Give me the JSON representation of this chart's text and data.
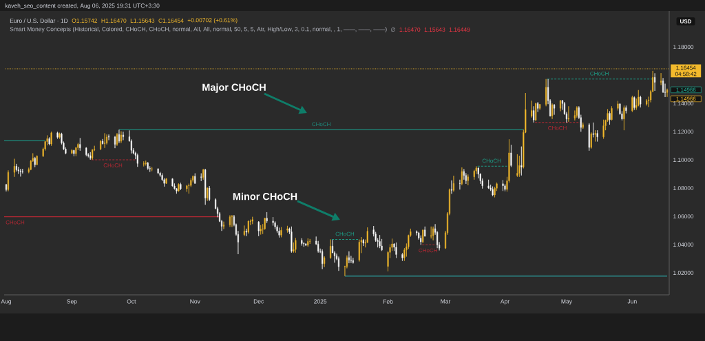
{
  "chart_data": {
    "type": "candlestick",
    "title": "Euro / U.S. Dollar · 1D",
    "annotations": [
      "kaveh_seo_content created, Aug 06, 2025 19:31 UTC+3:30",
      "O1.15742",
      "H1.16470",
      "L1.15643",
      "C1.16454",
      "+0.00702 (+0.61%)",
      "Smart Money Concepts (Historical, Colored, CHoCH, CHoCH, normal, All, All, normal, 50, 5, 5, Atr, High/Low, 3, 0.1, normal, , 1, ——, ——, ——)",
      "∅",
      "1.16470",
      "1.15643",
      "1.16449",
      "USD",
      "04:58:42",
      "Major CHoCH",
      "Minor CHoCH",
      "1.14966",
      "1.14966"
    ],
    "x": [
      "2024-08-01",
      "2024-08-02",
      "2024-08-05",
      "2024-08-06",
      "2024-08-07",
      "2024-08-08",
      "2024-08-09",
      "2024-08-12",
      "2024-08-13",
      "2024-08-14",
      "2024-08-15",
      "2024-08-16",
      "2024-08-19",
      "2024-08-20",
      "2024-08-21",
      "2024-08-22",
      "2024-08-23",
      "2024-08-26",
      "2024-08-27",
      "2024-08-28",
      "2024-08-29",
      "2024-08-30",
      "2024-09-02",
      "2024-09-03",
      "2024-09-04",
      "2024-09-05",
      "2024-09-06",
      "2024-09-09",
      "2024-09-10",
      "2024-09-11",
      "2024-09-12",
      "2024-09-13",
      "2024-09-16",
      "2024-09-17",
      "2024-09-18",
      "2024-09-19",
      "2024-09-20",
      "2024-09-23",
      "2024-09-24",
      "2024-09-25",
      "2024-09-26",
      "2024-09-27",
      "2024-09-30",
      "2024-10-01",
      "2024-10-02",
      "2024-10-03",
      "2024-10-04",
      "2024-10-07",
      "2024-10-08",
      "2024-10-09",
      "2024-10-10",
      "2024-10-11",
      "2024-10-14",
      "2024-10-15",
      "2024-10-16",
      "2024-10-17",
      "2024-10-18",
      "2024-10-21",
      "2024-10-22",
      "2024-10-23",
      "2024-10-24",
      "2024-10-25",
      "2024-10-28",
      "2024-10-29",
      "2024-10-30",
      "2024-10-31",
      "2024-11-01",
      "2024-11-04",
      "2024-11-05",
      "2024-11-06",
      "2024-11-07",
      "2024-11-08",
      "2024-11-11",
      "2024-11-12",
      "2024-11-13",
      "2024-11-14",
      "2024-11-15",
      "2024-11-18",
      "2024-11-19",
      "2024-11-20",
      "2024-11-21",
      "2024-11-22",
      "2024-11-25",
      "2024-11-26",
      "2024-11-27",
      "2024-11-28",
      "2024-11-29",
      "2024-12-02",
      "2024-12-03",
      "2024-12-04",
      "2024-12-05",
      "2024-12-06",
      "2024-12-09",
      "2024-12-10",
      "2024-12-11",
      "2024-12-12",
      "2024-12-13",
      "2024-12-16",
      "2024-12-17",
      "2024-12-18",
      "2024-12-19",
      "2024-12-20",
      "2024-12-23",
      "2024-12-24",
      "2024-12-25",
      "2024-12-26",
      "2024-12-27",
      "2024-12-30",
      "2024-12-31",
      "2025-01-01",
      "2025-01-02",
      "2025-01-03",
      "2025-01-06",
      "2025-01-07",
      "2025-01-08",
      "2025-01-09",
      "2025-01-10",
      "2025-01-13",
      "2025-01-14",
      "2025-01-15",
      "2025-01-16",
      "2025-01-17",
      "2025-01-20",
      "2025-01-21",
      "2025-01-22",
      "2025-01-23",
      "2025-01-24",
      "2025-01-27",
      "2025-01-28",
      "2025-01-29",
      "2025-01-30",
      "2025-01-31",
      "2025-02-03",
      "2025-02-04",
      "2025-02-05",
      "2025-02-06",
      "2025-02-07",
      "2025-02-10",
      "2025-02-11",
      "2025-02-12",
      "2025-02-13",
      "2025-02-14",
      "2025-02-17",
      "2025-02-18",
      "2025-02-19",
      "2025-02-20",
      "2025-02-21",
      "2025-02-24",
      "2025-02-25",
      "2025-02-26",
      "2025-02-27",
      "2025-02-28",
      "2025-03-03",
      "2025-03-04",
      "2025-03-05",
      "2025-03-06",
      "2025-03-07",
      "2025-03-10",
      "2025-03-11",
      "2025-03-12",
      "2025-03-13",
      "2025-03-14",
      "2025-03-17",
      "2025-03-18",
      "2025-03-19",
      "2025-03-20",
      "2025-03-21",
      "2025-03-24",
      "2025-03-25",
      "2025-03-26",
      "2025-03-27",
      "2025-03-28",
      "2025-03-31",
      "2025-04-01",
      "2025-04-02",
      "2025-04-03",
      "2025-04-04",
      "2025-04-07",
      "2025-04-08",
      "2025-04-09",
      "2025-04-10",
      "2025-04-11",
      "2025-04-14",
      "2025-04-15",
      "2025-04-16",
      "2025-04-17",
      "2025-04-18",
      "2025-04-21",
      "2025-04-22",
      "2025-04-23",
      "2025-04-24",
      "2025-04-25",
      "2025-04-28",
      "2025-04-29",
      "2025-04-30",
      "2025-05-01",
      "2025-05-02",
      "2025-05-05",
      "2025-05-06",
      "2025-05-07",
      "2025-05-08",
      "2025-05-09",
      "2025-05-12",
      "2025-05-13",
      "2025-05-14",
      "2025-05-15",
      "2025-05-16",
      "2025-05-19",
      "2025-05-20",
      "2025-05-21",
      "2025-05-22",
      "2025-05-23",
      "2025-05-26",
      "2025-05-27",
      "2025-05-28",
      "2025-05-29",
      "2025-05-30",
      "2025-06-02",
      "2025-06-03",
      "2025-06-04",
      "2025-06-05",
      "2025-06-06",
      "2025-06-09",
      "2025-06-10",
      "2025-06-11",
      "2025-06-12",
      "2025-06-13",
      "2025-06-16",
      "2025-06-17",
      "2025-06-18",
      "2025-06-19"
    ],
    "ohlc": [
      [
        1.0825,
        1.083,
        1.0777,
        1.079
      ],
      [
        1.079,
        1.0926,
        1.0778,
        1.0912
      ],
      [
        1.0912,
        1.1008,
        1.088,
        1.0955
      ],
      [
        1.0955,
        1.0972,
        1.0918,
        1.093
      ],
      [
        1.093,
        1.0951,
        1.0901,
        1.0922
      ],
      [
        1.0922,
        1.0937,
        1.0882,
        1.0918
      ],
      [
        1.0918,
        1.0937,
        1.0904,
        1.0916
      ],
      [
        1.0916,
        1.0945,
        1.0906,
        1.0932
      ],
      [
        1.0932,
        1.1,
        1.0927,
        1.0992
      ],
      [
        1.0992,
        1.1047,
        1.0986,
        1.1012
      ],
      [
        1.1012,
        1.1021,
        1.0949,
        1.0967
      ],
      [
        1.0967,
        1.1032,
        1.0962,
        1.1027
      ],
      [
        1.1027,
        1.1087,
        1.102,
        1.1078
      ],
      [
        1.1078,
        1.1135,
        1.1066,
        1.113
      ],
      [
        1.113,
        1.1174,
        1.1103,
        1.1151
      ],
      [
        1.1151,
        1.116,
        1.1104,
        1.1113
      ],
      [
        1.1113,
        1.1201,
        1.11,
        1.1192
      ],
      [
        1.1192,
        1.12,
        1.115,
        1.116
      ],
      [
        1.116,
        1.1193,
        1.115,
        1.1185
      ],
      [
        1.1185,
        1.1192,
        1.111,
        1.112
      ],
      [
        1.112,
        1.113,
        1.107,
        1.1077
      ],
      [
        1.1077,
        1.1089,
        1.104,
        1.1047
      ],
      [
        1.1047,
        1.1076,
        1.1042,
        1.1068
      ],
      [
        1.1068,
        1.1071,
        1.1026,
        1.1045
      ],
      [
        1.1045,
        1.109,
        1.1027,
        1.1087
      ],
      [
        1.1087,
        1.112,
        1.107,
        1.111
      ],
      [
        1.111,
        1.1155,
        1.1065,
        1.1085
      ],
      [
        1.1085,
        1.109,
        1.1026,
        1.1037
      ],
      [
        1.1037,
        1.1048,
        1.1018,
        1.103
      ],
      [
        1.103,
        1.1055,
        1.1001,
        1.1012
      ],
      [
        1.1012,
        1.1075,
        1.1002,
        1.1073
      ],
      [
        1.1073,
        1.11,
        1.1063,
        1.1076
      ],
      [
        1.1076,
        1.114,
        1.107,
        1.1132
      ],
      [
        1.1132,
        1.1148,
        1.111,
        1.1115
      ],
      [
        1.1115,
        1.1189,
        1.1085,
        1.112
      ],
      [
        1.112,
        1.118,
        1.111,
        1.1162
      ],
      [
        1.1165,
        1.118,
        1.114,
        1.1162
      ],
      [
        1.1162,
        1.117,
        1.1083,
        1.1111
      ],
      [
        1.1111,
        1.119,
        1.11,
        1.118
      ],
      [
        1.118,
        1.1214,
        1.112,
        1.1133
      ],
      [
        1.1133,
        1.1203,
        1.112,
        1.1177
      ],
      [
        1.1177,
        1.12,
        1.114,
        1.1164
      ],
      [
        1.1164,
        1.1209,
        1.113,
        1.1134
      ],
      [
        1.1134,
        1.1145,
        1.1046,
        1.1068
      ],
      [
        1.1068,
        1.1083,
        1.104,
        1.1048
      ],
      [
        1.1048,
        1.1058,
        1.1005,
        1.1033
      ],
      [
        1.1033,
        1.1045,
        1.0951,
        1.0975
      ],
      [
        1.097,
        1.099,
        1.0954,
        1.0973
      ],
      [
        1.0973,
        1.0995,
        1.096,
        1.0979
      ],
      [
        1.0979,
        1.0985,
        1.093,
        1.094
      ],
      [
        1.094,
        1.0955,
        1.0915,
        1.0936
      ],
      [
        1.0936,
        1.095,
        1.092,
        1.0937
      ],
      [
        1.0937,
        1.094,
        1.09,
        1.0907
      ],
      [
        1.0907,
        1.0915,
        1.088,
        1.0891
      ],
      [
        1.0891,
        1.0905,
        1.085,
        1.086
      ],
      [
        1.086,
        1.0871,
        1.0811,
        1.0834
      ],
      [
        1.0834,
        1.0871,
        1.083,
        1.0866
      ],
      [
        1.0866,
        1.087,
        1.0812,
        1.0815
      ],
      [
        1.0815,
        1.0833,
        1.079,
        1.0797
      ],
      [
        1.0797,
        1.08,
        1.0761,
        1.078
      ],
      [
        1.078,
        1.0834,
        1.0775,
        1.0827
      ],
      [
        1.0827,
        1.0838,
        1.0786,
        1.0796
      ],
      [
        1.0796,
        1.0822,
        1.0774,
        1.0817
      ],
      [
        1.0817,
        1.0832,
        1.0761,
        1.0819
      ],
      [
        1.0819,
        1.087,
        1.0808,
        1.0856
      ],
      [
        1.0856,
        1.089,
        1.0841,
        1.0884
      ],
      [
        1.0884,
        1.0905,
        1.0832,
        1.0833
      ],
      [
        1.088,
        1.0905,
        1.085,
        1.0876
      ],
      [
        1.0876,
        1.0937,
        1.086,
        1.093
      ],
      [
        1.093,
        1.0937,
        1.0682,
        1.073
      ],
      [
        1.073,
        1.0805,
        1.071,
        1.08
      ],
      [
        1.08,
        1.0815,
        1.0709,
        1.0719
      ],
      [
        1.0719,
        1.0727,
        1.0652,
        1.0655
      ],
      [
        1.0655,
        1.0668,
        1.0594,
        1.062
      ],
      [
        1.062,
        1.063,
        1.056,
        1.0565
      ],
      [
        1.0565,
        1.0575,
        1.0497,
        1.053
      ],
      [
        1.053,
        1.0563,
        1.051,
        1.054
      ],
      [
        1.054,
        1.0608,
        1.0525,
        1.0597
      ],
      [
        1.0597,
        1.061,
        1.0525,
        1.0598
      ],
      [
        1.0598,
        1.061,
        1.053,
        1.0542
      ],
      [
        1.0542,
        1.0549,
        1.0463,
        1.0472
      ],
      [
        1.0472,
        1.0497,
        1.0332,
        1.0418
      ],
      [
        1.047,
        1.0535,
        1.046,
        1.0496
      ],
      [
        1.0496,
        1.0513,
        1.046,
        1.0488
      ],
      [
        1.0488,
        1.057,
        1.0478,
        1.0566
      ],
      [
        1.0564,
        1.0578,
        1.0538,
        1.0566
      ],
      [
        1.0566,
        1.0597,
        1.0545,
        1.0577
      ],
      [
        1.056,
        1.0566,
        1.046,
        1.0497
      ],
      [
        1.0497,
        1.0538,
        1.0471,
        1.051
      ],
      [
        1.051,
        1.0545,
        1.0475,
        1.0512
      ],
      [
        1.0512,
        1.059,
        1.0505,
        1.0587
      ],
      [
        1.0587,
        1.063,
        1.0553,
        1.0567
      ],
      [
        1.0567,
        1.0595,
        1.0535,
        1.0555
      ],
      [
        1.0555,
        1.0565,
        1.0508,
        1.0526
      ],
      [
        1.0526,
        1.0538,
        1.0482,
        1.0496
      ],
      [
        1.0496,
        1.052,
        1.045,
        1.0467
      ],
      [
        1.0467,
        1.0524,
        1.0452,
        1.0502
      ],
      [
        1.0502,
        1.0533,
        1.0485,
        1.0512
      ],
      [
        1.0512,
        1.052,
        1.0475,
        1.0491
      ],
      [
        1.0491,
        1.0528,
        1.0343,
        1.0353
      ],
      [
        1.0353,
        1.0415,
        1.0343,
        1.0365
      ],
      [
        1.0365,
        1.0447,
        1.0343,
        1.043
      ],
      [
        1.043,
        1.0445,
        1.0393,
        1.0408
      ],
      [
        1.0408,
        1.0417,
        1.0385,
        1.0405
      ],
      [
        1.0405,
        1.041,
        1.039,
        1.0395
      ],
      [
        1.0395,
        1.0444,
        1.0385,
        1.0422
      ],
      [
        1.0422,
        1.044,
        1.0405,
        1.0425
      ],
      [
        1.0425,
        1.0457,
        1.0398,
        1.0404
      ],
      [
        1.0404,
        1.0426,
        1.0343,
        1.0354
      ],
      [
        1.0354,
        1.0372,
        1.034,
        1.0351
      ],
      [
        1.0351,
        1.0366,
        1.0226,
        1.0265
      ],
      [
        1.0265,
        1.0317,
        1.0241,
        1.0307
      ],
      [
        1.0307,
        1.0437,
        1.03,
        1.0389
      ],
      [
        1.0389,
        1.0433,
        1.034,
        1.0342
      ],
      [
        1.0342,
        1.0353,
        1.0272,
        1.032
      ],
      [
        1.032,
        1.0336,
        1.029,
        1.03
      ],
      [
        1.03,
        1.0315,
        1.0214,
        1.0244
      ],
      [
        1.0244,
        1.025,
        1.0177,
        1.0245
      ],
      [
        1.0245,
        1.0323,
        1.0232,
        1.0308
      ],
      [
        1.0308,
        1.0352,
        1.0268,
        1.029
      ],
      [
        1.029,
        1.032,
        1.027,
        1.0287
      ],
      [
        1.0287,
        1.0306,
        1.0266,
        1.0273
      ],
      [
        1.029,
        1.0436,
        1.028,
        1.0418
      ],
      [
        1.0418,
        1.0454,
        1.034,
        1.0431
      ],
      [
        1.0431,
        1.044,
        1.039,
        1.041
      ],
      [
        1.041,
        1.0436,
        1.038,
        1.0415
      ],
      [
        1.0415,
        1.0522,
        1.0412,
        1.0495
      ],
      [
        1.0505,
        1.0532,
        1.0458,
        1.0475
      ],
      [
        1.0475,
        1.049,
        1.042,
        1.043
      ],
      [
        1.043,
        1.0445,
        1.038,
        1.0422
      ],
      [
        1.0422,
        1.0468,
        1.0375,
        1.039
      ],
      [
        1.039,
        1.044,
        1.0355,
        1.0362
      ],
      [
        1.0245,
        1.0355,
        1.021,
        1.0345
      ],
      [
        1.0345,
        1.0402,
        1.0305,
        1.038
      ],
      [
        1.038,
        1.0442,
        1.0356,
        1.0405
      ],
      [
        1.0405,
        1.041,
        1.0355,
        1.0381
      ],
      [
        1.0381,
        1.0415,
        1.0305,
        1.033
      ],
      [
        1.033,
        1.034,
        1.0285,
        1.0306
      ],
      [
        1.0306,
        1.0375,
        1.0285,
        1.0362
      ],
      [
        1.0362,
        1.0408,
        1.0315,
        1.0384
      ],
      [
        1.0384,
        1.047,
        1.037,
        1.0465
      ],
      [
        1.0465,
        1.0513,
        1.0456,
        1.0492
      ],
      [
        1.0492,
        1.05,
        1.0465,
        1.0483
      ],
      [
        1.0483,
        1.049,
        1.0435,
        1.0446
      ],
      [
        1.0446,
        1.0465,
        1.0398,
        1.042
      ],
      [
        1.042,
        1.0505,
        1.041,
        1.0504
      ],
      [
        1.0504,
        1.0528,
        1.0458,
        1.0459
      ],
      [
        1.0459,
        1.0528,
        1.0443,
        1.0464
      ],
      [
        1.0464,
        1.0528,
        1.043,
        1.0513
      ],
      [
        1.0513,
        1.0545,
        1.047,
        1.0487
      ],
      [
        1.0487,
        1.0495,
        1.0375,
        1.0398
      ],
      [
        1.0398,
        1.0418,
        1.0359,
        1.0375
      ],
      [
        1.0375,
        1.0498,
        1.037,
        1.0484
      ],
      [
        1.0484,
        1.063,
        1.047,
        1.062
      ],
      [
        1.062,
        1.0797,
        1.0608,
        1.079
      ],
      [
        1.079,
        1.0855,
        1.076,
        1.0785
      ],
      [
        1.0785,
        1.0888,
        1.0775,
        1.0833
      ],
      [
        1.0833,
        1.086,
        1.079,
        1.0832
      ],
      [
        1.0832,
        1.0947,
        1.082,
        1.0918
      ],
      [
        1.0918,
        1.0935,
        1.086,
        1.089
      ],
      [
        1.089,
        1.0906,
        1.083,
        1.0853
      ],
      [
        1.0853,
        1.0897,
        1.082,
        1.088
      ],
      [
        1.088,
        1.093,
        1.086,
        1.0921
      ],
      [
        1.0921,
        1.0955,
        1.09,
        1.0943
      ],
      [
        1.0943,
        1.0945,
        1.087,
        1.0899
      ],
      [
        1.0899,
        1.0905,
        1.083,
        1.0852
      ],
      [
        1.0852,
        1.0868,
        1.0797,
        1.0816
      ],
      [
        1.0816,
        1.086,
        1.0795,
        1.0801
      ],
      [
        1.0801,
        1.0825,
        1.078,
        1.0791
      ],
      [
        1.0791,
        1.0812,
        1.0743,
        1.0752
      ],
      [
        1.0752,
        1.081,
        1.0735,
        1.0799
      ],
      [
        1.0799,
        1.084,
        1.078,
        1.0831
      ],
      [
        1.0831,
        1.0857,
        1.078,
        1.0817
      ],
      [
        1.0817,
        1.083,
        1.0778,
        1.0791
      ],
      [
        1.0791,
        1.088,
        1.0775,
        1.0852
      ],
      [
        1.0852,
        1.1146,
        1.084,
        1.105
      ],
      [
        1.105,
        1.1107,
        1.095,
        1.096
      ],
      [
        1.089,
        1.104,
        1.088,
        1.0905
      ],
      [
        1.0905,
        1.103,
        1.088,
        1.096
      ],
      [
        1.096,
        1.1095,
        1.089,
        1.095
      ],
      [
        1.095,
        1.1214,
        1.094,
        1.1195
      ],
      [
        1.1195,
        1.1474,
        1.119,
        1.1357
      ],
      [
        1.131,
        1.142,
        1.13,
        1.135
      ],
      [
        1.135,
        1.138,
        1.1265,
        1.1283
      ],
      [
        1.1283,
        1.1405,
        1.1275,
        1.14
      ],
      [
        1.14,
        1.141,
        1.134,
        1.1365
      ],
      [
        1.1365,
        1.1395,
        1.1355,
        1.1394
      ],
      [
        1.1394,
        1.1573,
        1.138,
        1.1515
      ],
      [
        1.1515,
        1.1572,
        1.1395,
        1.142
      ],
      [
        1.142,
        1.143,
        1.1307,
        1.1313
      ],
      [
        1.1313,
        1.14,
        1.129,
        1.139
      ],
      [
        1.139,
        1.1395,
        1.132,
        1.1366
      ],
      [
        1.1366,
        1.1424,
        1.1345,
        1.142
      ],
      [
        1.142,
        1.1425,
        1.1355,
        1.14
      ],
      [
        1.14,
        1.141,
        1.132,
        1.1327
      ],
      [
        1.1327,
        1.134,
        1.1265,
        1.129
      ],
      [
        1.129,
        1.138,
        1.127,
        1.1296
      ],
      [
        1.1296,
        1.135,
        1.128,
        1.1315
      ],
      [
        1.1315,
        1.138,
        1.13,
        1.137
      ],
      [
        1.137,
        1.138,
        1.129,
        1.13
      ],
      [
        1.13,
        1.132,
        1.12,
        1.123
      ],
      [
        1.123,
        1.1265,
        1.122,
        1.125
      ],
      [
        1.125,
        1.126,
        1.1065,
        1.1088
      ],
      [
        1.1088,
        1.1195,
        1.108,
        1.1186
      ],
      [
        1.1186,
        1.1265,
        1.116,
        1.118
      ],
      [
        1.118,
        1.121,
        1.113,
        1.1188
      ],
      [
        1.1188,
        1.121,
        1.113,
        1.1163
      ],
      [
        1.1163,
        1.1285,
        1.115,
        1.1242
      ],
      [
        1.1242,
        1.1285,
        1.121,
        1.128
      ],
      [
        1.128,
        1.136,
        1.127,
        1.133
      ],
      [
        1.133,
        1.1345,
        1.125,
        1.1285
      ],
      [
        1.1285,
        1.138,
        1.128,
        1.1365
      ],
      [
        1.1365,
        1.1418,
        1.135,
        1.1397
      ],
      [
        1.1397,
        1.14,
        1.132,
        1.1327
      ],
      [
        1.1327,
        1.1345,
        1.128,
        1.129
      ],
      [
        1.129,
        1.1385,
        1.121,
        1.137
      ],
      [
        1.137,
        1.1385,
        1.133,
        1.1348
      ],
      [
        1.1348,
        1.1455,
        1.134,
        1.1442
      ],
      [
        1.1442,
        1.145,
        1.1355,
        1.137
      ],
      [
        1.137,
        1.1435,
        1.1355,
        1.1386
      ],
      [
        1.1386,
        1.1495,
        1.138,
        1.1445
      ],
      [
        1.1445,
        1.1455,
        1.1372,
        1.1395
      ],
      [
        1.1395,
        1.143,
        1.1385,
        1.142
      ],
      [
        1.142,
        1.1448,
        1.1375,
        1.1425
      ],
      [
        1.1425,
        1.1495,
        1.1408,
        1.1485
      ],
      [
        1.1485,
        1.1631,
        1.148,
        1.1585
      ],
      [
        1.1585,
        1.1614,
        1.1489,
        1.155
      ],
      [
        1.155,
        1.1615,
        1.153,
        1.156
      ],
      [
        1.156,
        1.158,
        1.1475,
        1.148
      ],
      [
        1.148,
        1.154,
        1.1445,
        1.1478
      ],
      [
        1.1478,
        1.1505,
        1.1446,
        1.14966
      ]
    ],
    "colors": [
      "#ffffff",
      "#f2b92c",
      "#f2b92c",
      "#ffffff",
      "#ffffff",
      "#ffffff",
      "#ffffff",
      "#f2b92c",
      "#f2b92c",
      "#f2b92c",
      "#ffffff",
      "#f2b92c",
      "#f2b92c",
      "#f2b92c",
      "#f2b92c",
      "#ffffff",
      "#f2b92c",
      "#ffffff",
      "#f2b92c",
      "#ffffff",
      "#ffffff",
      "#ffffff",
      "#f2b92c",
      "#ffffff",
      "#f2b92c",
      "#f2b92c",
      "#ffffff",
      "#ffffff",
      "#ffffff",
      "#ffffff",
      "#f2b92c",
      "#f2b92c",
      "#f2b92c",
      "#ffffff",
      "#f2b92c",
      "#f2b92c",
      "#ffffff",
      "#ffffff",
      "#f2b92c",
      "#ffffff",
      "#f2b92c",
      "#ffffff",
      "#ffffff",
      "#ffffff",
      "#ffffff",
      "#ffffff",
      "#ffffff",
      "#f2b92c",
      "#f2b92c",
      "#ffffff",
      "#ffffff",
      "#f2b92c",
      "#ffffff",
      "#ffffff",
      "#ffffff",
      "#ffffff",
      "#f2b92c",
      "#ffffff",
      "#ffffff",
      "#ffffff",
      "#f2b92c",
      "#ffffff",
      "#f2b92c",
      "#f2b92c",
      "#f2b92c",
      "#f2b92c",
      "#ffffff",
      "#ffffff",
      "#f2b92c",
      "#ffffff",
      "#f2b92c",
      "#ffffff",
      "#ffffff",
      "#ffffff",
      "#ffffff",
      "#ffffff",
      "#f2b92c",
      "#f2b92c",
      "#f2b92c",
      "#ffffff",
      "#ffffff",
      "#ffffff",
      "#f2b92c",
      "#ffffff",
      "#f2b92c",
      "#f2b92c",
      "#f2b92c",
      "#ffffff",
      "#f2b92c",
      "#f2b92c",
      "#f2b92c",
      "#ffffff",
      "#ffffff",
      "#ffffff",
      "#ffffff",
      "#ffffff",
      "#f2b92c",
      "#f2b92c",
      "#ffffff",
      "#ffffff",
      "#f2b92c",
      "#f2b92c",
      "#ffffff",
      "#ffffff",
      "#ffffff",
      "#f2b92c",
      "#f2b92c",
      "#ffffff",
      "#ffffff",
      "#ffffff",
      "#ffffff",
      "#f2b92c",
      "#f2b92c",
      "#ffffff",
      "#ffffff",
      "#ffffff",
      "#ffffff",
      "#f2b92c",
      "#f2b92c",
      "#ffffff",
      "#ffffff",
      "#ffffff",
      "#f2b92c",
      "#f2b92c",
      "#ffffff",
      "#f2b92c",
      "#f2b92c",
      "#ffffff",
      "#ffffff",
      "#ffffff",
      "#ffffff",
      "#ffffff",
      "#f2b92c",
      "#f2b92c",
      "#f2b92c",
      "#ffffff",
      "#ffffff",
      "#ffffff",
      "#f2b92c",
      "#f2b92c",
      "#f2b92c",
      "#f2b92c",
      "#ffffff",
      "#ffffff",
      "#ffffff",
      "#f2b92c",
      "#ffffff",
      "#f2b92c",
      "#f2b92c",
      "#ffffff",
      "#ffffff",
      "#ffffff",
      "#f2b92c",
      "#f2b92c",
      "#f2b92c",
      "#ffffff",
      "#f2b92c",
      "#ffffff",
      "#f2b92c",
      "#ffffff",
      "#ffffff",
      "#f2b92c",
      "#f2b92c",
      "#f2b92c",
      "#ffffff",
      "#ffffff",
      "#ffffff",
      "#ffffff",
      "#ffffff",
      "#ffffff",
      "#f2b92c",
      "#f2b92c",
      "#ffffff",
      "#ffffff",
      "#f2b92c",
      "#f2b92c",
      "#ffffff",
      "#f2b92c",
      "#f2b92c",
      "#ffffff",
      "#f2b92c",
      "#f2b92c",
      "#f2b92c",
      "#ffffff",
      "#f2b92c",
      "#ffffff",
      "#f2b92c",
      "#f2b92c",
      "#ffffff",
      "#ffffff",
      "#f2b92c",
      "#ffffff",
      "#f2b92c",
      "#ffffff",
      "#ffffff",
      "#ffffff",
      "#f2b92c",
      "#f2b92c",
      "#f2b92c",
      "#ffffff",
      "#ffffff",
      "#f2b92c",
      "#ffffff",
      "#f2b92c",
      "#ffffff",
      "#f2b92c",
      "#ffffff",
      "#f2b92c",
      "#f2b92c",
      "#f2b92c",
      "#ffffff",
      "#f2b92c",
      "#f2b92c",
      "#ffffff",
      "#ffffff",
      "#f2b92c",
      "#ffffff",
      "#f2b92c",
      "#ffffff",
      "#f2b92c",
      "#f2b92c",
      "#ffffff",
      "#f2b92c",
      "#f2b92c",
      "#f2b92c",
      "#f2b92c",
      "#ffffff",
      "#f2b92c",
      "#ffffff",
      "#ffffff",
      "#f2b92c"
    ],
    "series": [
      {
        "type": "line",
        "x": [
          "2024-07-31",
          "2024-08-20"
        ],
        "values": [
          1.1137,
          1.1137
        ],
        "color": "#1e8c7e",
        "line_style": "solid"
      },
      {
        "type": "line",
        "name": "CHoCH",
        "x": [
          "2024-07-31",
          "2024-11-13"
        ],
        "values": [
          1.0597,
          1.0597
        ],
        "color": "#b22833",
        "line_style": "solid"
      },
      {
        "type": "line",
        "name": "CHoCH",
        "x": [
          "2024-09-11",
          "2024-10-03"
        ],
        "values": [
          1.1001,
          1.1001
        ],
        "color": "#b22833",
        "line_style": "dashed"
      },
      {
        "type": "line",
        "name": "CHoCH",
        "x": [
          "2024-09-25",
          "2025-04-10"
        ],
        "values": [
          1.1214,
          1.1214
        ],
        "color": "#1e8c7e",
        "line_style": "solid"
      },
      {
        "type": "line",
        "name": "CHoCH",
        "x": [
          "2025-01-06",
          "2025-01-20"
        ],
        "values": [
          1.0437,
          1.0437
        ],
        "color": "#1e9c86",
        "line_style": "dashed"
      },
      {
        "type": "line",
        "x": [
          "2025-01-13",
          "2025-06-19"
        ],
        "values": [
          1.0177,
          1.0177
        ],
        "color": "#2a8c8c",
        "line_style": "solid"
      },
      {
        "type": "line",
        "name": "CHoCH",
        "x": [
          "2025-02-19",
          "2025-02-26"
        ],
        "values": [
          1.0398,
          1.0398
        ],
        "color": "#b22833",
        "line_style": "dashed"
      },
      {
        "type": "line",
        "name": "CHoCH",
        "x": [
          "2025-03-18",
          "2025-04-02"
        ],
        "values": [
          1.0955,
          1.0955
        ],
        "color": "#1e9c86",
        "line_style": "dashed"
      },
      {
        "type": "line",
        "name": "CHoCH",
        "x": [
          "2025-04-15",
          "2025-05-08"
        ],
        "values": [
          1.1265,
          1.1265
        ],
        "color": "#b22833",
        "line_style": "dashed"
      },
      {
        "type": "line",
        "name": "CHoCH",
        "x": [
          "2025-04-21",
          "2025-06-12"
        ],
        "values": [
          1.1573,
          1.1573
        ],
        "color": "#1e9c86",
        "line_style": "dashed"
      }
    ],
    "ref_lines": [
      {
        "axis": "y",
        "value": 1.16454,
        "label": "1.16454",
        "color": "#f2b92c",
        "line_style": "dotted"
      }
    ],
    "xlim": [
      "2024-07-31",
      "2025-06-20"
    ],
    "xticks": [
      {
        "value": "2024-08-01",
        "label": "Aug"
      },
      {
        "value": "2024-09-02",
        "label": "Sep"
      },
      {
        "value": "2024-10-01",
        "label": "Oct"
      },
      {
        "value": "2024-11-01",
        "label": "Nov"
      },
      {
        "value": "2024-12-02",
        "label": "Dec"
      },
      {
        "value": "2025-01-01",
        "label": "2025"
      },
      {
        "value": "2025-02-03",
        "label": "Feb"
      },
      {
        "value": "2025-03-03",
        "label": "Mar"
      },
      {
        "value": "2025-04-01",
        "label": "Apr"
      },
      {
        "value": "2025-05-01",
        "label": "May"
      },
      {
        "value": "2025-06-02",
        "label": "Jun"
      }
    ],
    "ylim": [
      1.0044,
      1.2055
    ],
    "yticks": [
      {
        "value": 1.02,
        "label": "1.02000"
      },
      {
        "value": 1.04,
        "label": "1.04000"
      },
      {
        "value": 1.06,
        "label": "1.06000"
      },
      {
        "value": 1.08,
        "label": "1.08000"
      },
      {
        "value": 1.1,
        "label": "1.10000"
      },
      {
        "value": 1.12,
        "label": "1.12000"
      },
      {
        "value": 1.14,
        "label": "1.14000"
      },
      {
        "value": 1.18,
        "label": "1.18000"
      }
    ]
  }
}
